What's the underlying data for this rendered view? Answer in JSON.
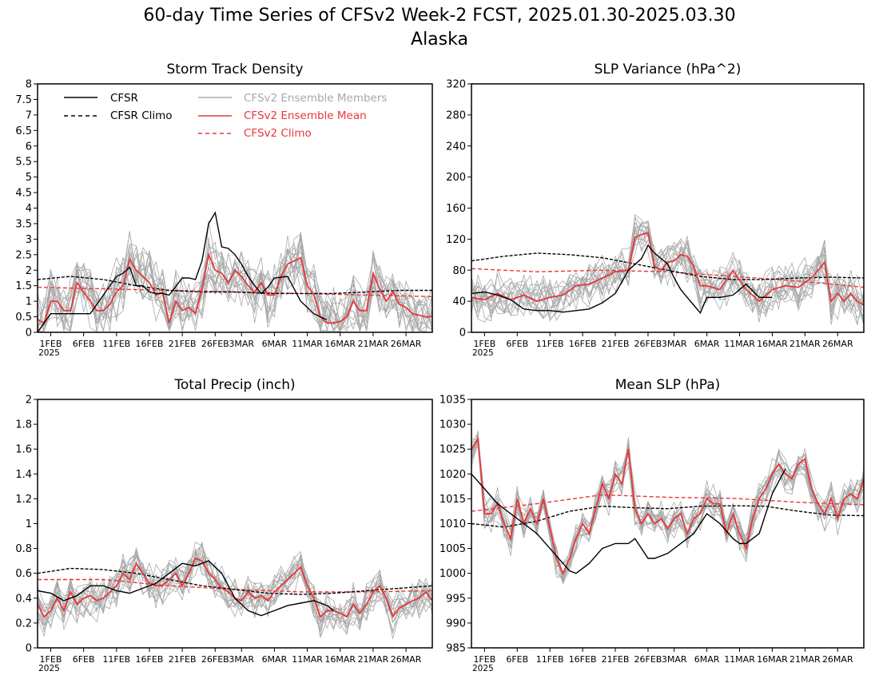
{
  "page": {
    "title": "60-day Time Series of CFSv2 Week-2 FCST, 2025.01.30-2025.03.30",
    "subtitle": "Alaska"
  },
  "colors": {
    "cfsr": "#000000",
    "ens_mean": "#e8373a",
    "members": "#a8a8a8",
    "cfsv2_climo": "#e8373a",
    "cfsr_climo": "#000000"
  },
  "legend": {
    "cfsr": "CFSR",
    "cfsr_climo": "CFSR Climo",
    "members": "CFSv2 Ensemble Members",
    "ens_mean": "CFSv2 Ensemble Mean",
    "cfsv2_climo": "CFSv2 Climo"
  },
  "x_axis": {
    "ticks": [
      {
        "day": 2,
        "label": "1FEB",
        "sub": "2025"
      },
      {
        "day": 7,
        "label": "6FEB"
      },
      {
        "day": 12,
        "label": "11FEB"
      },
      {
        "day": 17,
        "label": "16FEB"
      },
      {
        "day": 22,
        "label": "21FEB"
      },
      {
        "day": 27,
        "label": "26FEB"
      },
      {
        "day": 31,
        "label": "3MAR"
      },
      {
        "day": 36,
        "label": "6MAR"
      },
      {
        "day": 41,
        "label": "11MAR"
      },
      {
        "day": 46,
        "label": "16MAR"
      },
      {
        "day": 51,
        "label": "21MAR"
      },
      {
        "day": 56,
        "label": "26MAR"
      }
    ]
  },
  "chart_data": [
    {
      "type": "line",
      "title": "Storm Track Density",
      "ylim": [
        0,
        8
      ],
      "yticks": [
        "0",
        "0.5",
        "1",
        "1.5",
        "2",
        "2.5",
        "3",
        "3.5",
        "4",
        "4.5",
        "5",
        "5.5",
        "6",
        "6.5",
        "7",
        "7.5",
        "8"
      ],
      "legend": "top-left",
      "series": [
        {
          "name": "CFSR",
          "key": "cfsr",
          "x": [
            0,
            2,
            4,
            6,
            8,
            10,
            12,
            13,
            14,
            15,
            16,
            17,
            18,
            19,
            20,
            22,
            23,
            24,
            25,
            26,
            27,
            28,
            29,
            30,
            31,
            32,
            33,
            34,
            35,
            36,
            38,
            39,
            40,
            41,
            42,
            43,
            44,
            45,
            46
          ],
          "y": [
            0,
            0.6,
            0.6,
            0.6,
            0.6,
            1.2,
            1.8,
            1.9,
            2.1,
            1.5,
            1.5,
            1.3,
            1.25,
            1.25,
            1.2,
            1.75,
            1.75,
            1.7,
            2.3,
            3.5,
            3.85,
            2.75,
            2.7,
            2.5,
            2.2,
            1.8,
            1.5,
            1.25,
            1.45,
            1.75,
            1.8,
            1.4,
            1.0,
            0.8,
            0.6,
            0.5,
            0.4,
            null,
            null
          ]
        },
        {
          "name": "CFSR Climo",
          "key": "cfsr_climo",
          "x": [
            0,
            5,
            10,
            15,
            20,
            25,
            30,
            35,
            40,
            45,
            50,
            55,
            60
          ],
          "y": [
            1.7,
            1.8,
            1.7,
            1.5,
            1.35,
            1.3,
            1.3,
            1.25,
            1.25,
            1.25,
            1.3,
            1.35,
            1.35
          ]
        },
        {
          "name": "CFSv2 Ensemble Mean",
          "key": "ens_mean",
          "x": [
            0,
            1,
            2,
            3,
            4,
            5,
            6,
            7,
            8,
            9,
            10,
            11,
            12,
            13,
            14,
            15,
            16,
            17,
            18,
            19,
            20,
            21,
            22,
            23,
            24,
            25,
            26,
            27,
            28,
            29,
            30,
            31,
            32,
            33,
            34,
            35,
            36,
            37,
            38,
            39,
            40,
            41,
            42,
            43,
            44,
            45,
            46,
            47,
            48,
            49,
            50,
            51,
            52,
            53,
            54,
            55,
            56,
            57,
            58,
            59,
            60
          ],
          "y": [
            0.4,
            0.3,
            1.0,
            1.0,
            0.7,
            0.7,
            1.6,
            1.3,
            1.0,
            0.7,
            0.7,
            0.9,
            1.3,
            1.5,
            2.35,
            2.0,
            1.8,
            1.6,
            1.2,
            1.3,
            0.3,
            1.0,
            0.7,
            0.8,
            0.6,
            1.4,
            2.5,
            2.0,
            1.9,
            1.6,
            2.0,
            1.8,
            1.5,
            1.3,
            1.6,
            1.2,
            1.2,
            1.8,
            2.2,
            2.3,
            2.4,
            1.5,
            1.2,
            0.5,
            0.3,
            0.3,
            0.35,
            0.5,
            1.0,
            0.7,
            0.7,
            1.9,
            1.4,
            1.0,
            1.3,
            0.9,
            0.8,
            0.6,
            0.55,
            0.5,
            0.5
          ]
        },
        {
          "name": "CFSv2 Climo",
          "key": "cfsv2_climo",
          "x": [
            0,
            10,
            20,
            30,
            40,
            50,
            60
          ],
          "y": [
            1.45,
            1.4,
            1.35,
            1.3,
            1.25,
            1.2,
            1.15
          ]
        }
      ]
    },
    {
      "type": "line",
      "title": "SLP Variance (hPa^2)",
      "ylim": [
        0,
        320
      ],
      "yticks": [
        "0",
        "40",
        "80",
        "120",
        "160",
        "200",
        "240",
        "280",
        "320"
      ],
      "series": [
        {
          "name": "CFSR",
          "key": "cfsr",
          "x": [
            0,
            2,
            4,
            6,
            8,
            10,
            12,
            14,
            16,
            18,
            20,
            22,
            24,
            26,
            27,
            28,
            29,
            30,
            31,
            32,
            33,
            34,
            35,
            36,
            38,
            40,
            42,
            44,
            46
          ],
          "y": [
            50,
            52,
            48,
            42,
            30,
            28,
            28,
            26,
            28,
            30,
            38,
            50,
            80,
            95,
            112,
            102,
            95,
            88,
            70,
            55,
            45,
            35,
            25,
            45,
            45,
            48,
            62,
            45,
            45
          ]
        },
        {
          "name": "CFSR Climo",
          "key": "cfsr_climo",
          "x": [
            0,
            5,
            10,
            15,
            20,
            25,
            30,
            35,
            40,
            45,
            50,
            55,
            60
          ],
          "y": [
            92,
            98,
            102,
            100,
            96,
            88,
            80,
            72,
            68,
            68,
            70,
            71,
            70
          ]
        },
        {
          "name": "CFSv2 Ensemble Mean",
          "key": "ens_mean",
          "x": [
            0,
            2,
            4,
            6,
            8,
            10,
            12,
            14,
            16,
            18,
            20,
            22,
            24,
            25,
            26,
            27,
            28,
            29,
            30,
            31,
            32,
            33,
            34,
            35,
            36,
            38,
            40,
            42,
            44,
            46,
            48,
            50,
            52,
            53,
            54,
            55,
            56,
            57,
            58,
            59,
            60
          ],
          "y": [
            45,
            42,
            50,
            42,
            48,
            40,
            45,
            48,
            60,
            62,
            70,
            78,
            80,
            122,
            126,
            128,
            85,
            80,
            90,
            92,
            100,
            98,
            85,
            60,
            60,
            55,
            80,
            55,
            40,
            55,
            60,
            58,
            70,
            80,
            90,
            40,
            50,
            40,
            50,
            40,
            35
          ]
        },
        {
          "name": "CFSv2 Climo",
          "key": "cfsv2_climo",
          "x": [
            0,
            10,
            20,
            30,
            40,
            50,
            60
          ],
          "y": [
            82,
            78,
            80,
            78,
            72,
            66,
            58
          ]
        }
      ]
    },
    {
      "type": "line",
      "title": "Total Precip (inch)",
      "ylim": [
        0,
        2
      ],
      "yticks": [
        "0",
        "0.2",
        "0.4",
        "0.6",
        "0.8",
        "1",
        "1.2",
        "1.4",
        "1.6",
        "1.8",
        "2"
      ],
      "series": [
        {
          "name": "CFSR",
          "key": "cfsr",
          "x": [
            0,
            2,
            4,
            6,
            8,
            10,
            12,
            14,
            16,
            18,
            20,
            22,
            24,
            26,
            28,
            30,
            32,
            34,
            36,
            38,
            40,
            42,
            44,
            45,
            46
          ],
          "y": [
            0.46,
            0.44,
            0.38,
            0.42,
            0.5,
            0.5,
            0.46,
            0.44,
            0.48,
            0.52,
            0.6,
            0.68,
            0.66,
            0.7,
            0.6,
            0.4,
            0.3,
            0.26,
            0.3,
            0.34,
            0.36,
            0.38,
            0.34,
            0.3,
            null
          ]
        },
        {
          "name": "CFSR Climo",
          "key": "cfsr_climo",
          "x": [
            0,
            5,
            10,
            15,
            20,
            25,
            30,
            35,
            40,
            45,
            50,
            55,
            60
          ],
          "y": [
            0.6,
            0.64,
            0.63,
            0.6,
            0.55,
            0.5,
            0.47,
            0.44,
            0.43,
            0.44,
            0.46,
            0.48,
            0.5
          ]
        },
        {
          "name": "CFSv2 Ensemble Mean",
          "key": "ens_mean",
          "x": [
            0,
            1,
            2,
            3,
            4,
            5,
            6,
            7,
            8,
            9,
            10,
            11,
            12,
            13,
            14,
            15,
            16,
            17,
            18,
            19,
            20,
            21,
            22,
            23,
            24,
            25,
            26,
            27,
            28,
            29,
            30,
            31,
            32,
            33,
            34,
            35,
            36,
            37,
            38,
            39,
            40,
            41,
            42,
            43,
            44,
            45,
            46,
            47,
            48,
            49,
            50,
            51,
            52,
            53,
            54,
            55,
            56,
            57,
            58,
            59,
            60
          ],
          "y": [
            0.35,
            0.25,
            0.3,
            0.4,
            0.3,
            0.45,
            0.35,
            0.4,
            0.42,
            0.38,
            0.4,
            0.45,
            0.5,
            0.6,
            0.55,
            0.68,
            0.6,
            0.52,
            0.5,
            0.5,
            0.55,
            0.6,
            0.5,
            0.6,
            0.72,
            0.7,
            0.6,
            0.55,
            0.48,
            0.45,
            0.4,
            0.38,
            0.45,
            0.4,
            0.42,
            0.38,
            0.45,
            0.5,
            0.55,
            0.6,
            0.65,
            0.5,
            0.4,
            0.25,
            0.3,
            0.3,
            0.28,
            0.25,
            0.35,
            0.28,
            0.35,
            0.45,
            0.5,
            0.4,
            0.25,
            0.32,
            0.35,
            0.38,
            0.4,
            0.45,
            0.38
          ]
        },
        {
          "name": "CFSv2 Climo",
          "key": "cfsv2_climo",
          "x": [
            0,
            10,
            20,
            30,
            40,
            50,
            60
          ],
          "y": [
            0.55,
            0.55,
            0.5,
            0.47,
            0.45,
            0.45,
            0.46
          ]
        }
      ]
    },
    {
      "type": "line",
      "title": "Mean SLP (hPa)",
      "ylim": [
        985,
        1035
      ],
      "yticks": [
        "985",
        "990",
        "995",
        "1000",
        "1005",
        "1010",
        "1015",
        "1020",
        "1025",
        "1030",
        "1035"
      ],
      "series": [
        {
          "name": "CFSR",
          "key": "cfsr",
          "x": [
            0,
            2,
            4,
            6,
            8,
            10,
            12,
            14,
            15,
            16,
            18,
            20,
            22,
            24,
            25,
            26,
            27,
            28,
            30,
            32,
            34,
            36,
            38,
            40,
            41,
            42,
            44,
            46,
            48
          ],
          "y": [
            1020,
            1017,
            1014,
            1012,
            1010,
            1008,
            1005,
            1002,
            1000.5,
            1000,
            1002,
            1005,
            1006,
            1006,
            1007,
            1005,
            1003,
            1003,
            1004,
            1006,
            1008,
            1012,
            1010,
            1007,
            1006,
            1006,
            1008,
            1016,
            1021
          ]
        },
        {
          "name": "CFSR Climo",
          "key": "cfsr_climo",
          "x": [
            0,
            5,
            10,
            15,
            20,
            25,
            30,
            35,
            40,
            45,
            50,
            55,
            60
          ],
          "y": [
            1010,
            1009.3,
            1010.5,
            1012.5,
            1013.5,
            1013.2,
            1013,
            1013.5,
            1013.6,
            1013.5,
            1012.5,
            1011.7,
            1011.6
          ]
        },
        {
          "name": "CFSv2 Ensemble Mean",
          "key": "ens_mean",
          "x": [
            0,
            1,
            2,
            3,
            4,
            5,
            6,
            7,
            8,
            9,
            10,
            11,
            12,
            13,
            14,
            15,
            16,
            17,
            18,
            19,
            20,
            21,
            22,
            23,
            24,
            25,
            26,
            27,
            28,
            29,
            30,
            31,
            32,
            33,
            34,
            35,
            36,
            37,
            38,
            39,
            40,
            41,
            42,
            43,
            44,
            45,
            46,
            47,
            48,
            49,
            50,
            51,
            52,
            53,
            54,
            55,
            56,
            57,
            58,
            59,
            60
          ],
          "y": [
            1025,
            1027,
            1012,
            1012,
            1014,
            1010,
            1007,
            1015,
            1010,
            1013,
            1010,
            1015,
            1009,
            1003,
            1000,
            1003,
            1007,
            1010,
            1008,
            1013,
            1018,
            1015,
            1020,
            1018,
            1025,
            1013,
            1010,
            1012,
            1010,
            1011,
            1009,
            1011,
            1012,
            1008,
            1011,
            1012,
            1015,
            1014,
            1014,
            1008,
            1012,
            1008,
            1005,
            1011,
            1015,
            1017,
            1020,
            1022,
            1020,
            1019,
            1022,
            1023,
            1017,
            1014,
            1012,
            1015,
            1011,
            1015,
            1016,
            1015,
            1019
          ]
        },
        {
          "name": "CFSv2 Climo",
          "key": "cfsv2_climo",
          "x": [
            0,
            10,
            20,
            30,
            40,
            50,
            60
          ],
          "y": [
            1012.5,
            1014,
            1015.8,
            1015.3,
            1015.1,
            1014.3,
            1013.8
          ]
        }
      ]
    }
  ]
}
